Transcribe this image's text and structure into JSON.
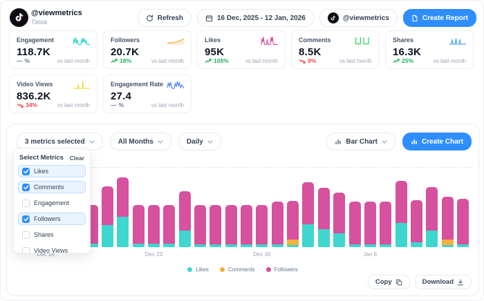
{
  "header": {
    "account": "@viewmetrics",
    "platform": "Tiktok",
    "refresh_label": "Refresh",
    "date_range": "16 Dec, 2025 - 12 Jan, 2026",
    "account_selector": "@viewmetrics",
    "create_report_label": "Create Report"
  },
  "cards": [
    {
      "title": "Engagement",
      "value": "118.7K",
      "direction": "flat",
      "change": "%",
      "compare": "vs last month",
      "spark_color": "#3ad6cf"
    },
    {
      "title": "Followers",
      "value": "20.7K",
      "direction": "up",
      "change": "18%",
      "compare": "vs last month",
      "spark_color": "#f5a93c"
    },
    {
      "title": "Likes",
      "value": "95K",
      "direction": "up",
      "change": "105%",
      "compare": "vs last month",
      "spark_color": "#d9519f"
    },
    {
      "title": "Comments",
      "value": "8.5K",
      "direction": "down",
      "change": "9%",
      "compare": "vs last month",
      "spark_color": "#3fd96d"
    },
    {
      "title": "Shares",
      "value": "16.3K",
      "direction": "up",
      "change": "25%",
      "compare": "vs last month",
      "spark_color": "#4da3ff"
    },
    {
      "title": "Video Views",
      "value": "836.2K",
      "direction": "down",
      "change": "34%",
      "compare": "vs last month",
      "spark_color": "#f0e13c"
    },
    {
      "title": "Engagement Rate",
      "value": "27.4",
      "direction": "flat",
      "change": "%",
      "compare": "vs last month",
      "spark_color": "#4d7ff7"
    }
  ],
  "controls": {
    "metrics_selected": "3 metrics selected",
    "months": "All Months",
    "granularity": "Daily",
    "chart_type": "Bar Chart",
    "create_chart_label": "Create Chart"
  },
  "metrics_dropdown": {
    "title": "Select Metrics",
    "clear_label": "Clear",
    "options": [
      {
        "label": "Likes",
        "checked": true
      },
      {
        "label": "Comments",
        "checked": true
      },
      {
        "label": "Engagement",
        "checked": false
      },
      {
        "label": "Followers",
        "checked": true
      },
      {
        "label": "Shares",
        "checked": false
      },
      {
        "label": "Video Views",
        "checked": false
      }
    ]
  },
  "chart_data": {
    "type": "bar",
    "stacked": true,
    "note": "stacked daily bars; values are relative heights estimated from pixels (no y-axis labels visible)",
    "series": [
      {
        "key": "likes",
        "label": "Likes",
        "color": "#3ed6ce"
      },
      {
        "key": "comments",
        "label": "Comments",
        "color": "#f2b13c"
      },
      {
        "key": "followers",
        "label": "Followers",
        "color": "#d6519e"
      }
    ],
    "x_ticks": [
      "Dec 16",
      "Dec 23",
      "Dec 30",
      "Jan 6"
    ],
    "tick_indices": [
      0,
      7,
      14,
      21
    ],
    "bars": [
      {
        "date": "Dec 16",
        "likes": 4,
        "comments": 0,
        "followers": 58
      },
      {
        "date": "Dec 17",
        "likes": 4,
        "comments": 0,
        "followers": 58
      },
      {
        "date": "Dec 18",
        "likes": 4,
        "comments": 0,
        "followers": 58
      },
      {
        "date": "Dec 19",
        "likes": 5,
        "comments": 0,
        "followers": 56
      },
      {
        "date": "Dec 20",
        "likes": 32,
        "comments": 0,
        "followers": 56
      },
      {
        "date": "Dec 21",
        "likes": 44,
        "comments": 0,
        "followers": 57
      },
      {
        "date": "Dec 22",
        "likes": 5,
        "comments": 0,
        "followers": 56
      },
      {
        "date": "Dec 23",
        "likes": 5,
        "comments": 0,
        "followers": 56
      },
      {
        "date": "Dec 24",
        "likes": 5,
        "comments": 0,
        "followers": 56
      },
      {
        "date": "Dec 25",
        "likes": 24,
        "comments": 0,
        "followers": 57
      },
      {
        "date": "Dec 26",
        "likes": 4,
        "comments": 0,
        "followers": 57
      },
      {
        "date": "Dec 27",
        "likes": 4,
        "comments": 0,
        "followers": 57
      },
      {
        "date": "Dec 28",
        "likes": 4,
        "comments": 0,
        "followers": 57
      },
      {
        "date": "Dec 29",
        "likes": 4,
        "comments": 0,
        "followers": 57
      },
      {
        "date": "Dec 30",
        "likes": 4,
        "comments": 0,
        "followers": 57
      },
      {
        "date": "Dec 31",
        "likes": 4,
        "comments": 0,
        "followers": 62
      },
      {
        "date": "Jan 1",
        "likes": 3,
        "comments": 8,
        "followers": 56
      },
      {
        "date": "Jan 2",
        "likes": 33,
        "comments": 0,
        "followers": 61
      },
      {
        "date": "Jan 3",
        "likes": 26,
        "comments": 0,
        "followers": 60
      },
      {
        "date": "Jan 4",
        "likes": 20,
        "comments": 0,
        "followers": 59
      },
      {
        "date": "Jan 5",
        "likes": 4,
        "comments": 0,
        "followers": 62
      },
      {
        "date": "Jan 6",
        "likes": 4,
        "comments": 0,
        "followers": 62
      },
      {
        "date": "Jan 7",
        "likes": 4,
        "comments": 0,
        "followers": 62
      },
      {
        "date": "Jan 8",
        "likes": 35,
        "comments": 0,
        "followers": 61
      },
      {
        "date": "Jan 9",
        "likes": 7,
        "comments": 0,
        "followers": 61
      },
      {
        "date": "Jan 10",
        "likes": 24,
        "comments": 0,
        "followers": 63
      },
      {
        "date": "Jan 11",
        "likes": 3,
        "comments": 8,
        "followers": 62
      },
      {
        "date": "Jan 12",
        "likes": 4,
        "comments": 0,
        "followers": 66
      }
    ]
  },
  "footer": {
    "copy_label": "Copy",
    "download_label": "Download"
  },
  "colors": {
    "accent_blue": "#2e8efd",
    "likes_teal": "#3ed6ce",
    "comments_orange": "#f2b13c",
    "followers_pink": "#d6519e",
    "positive_green": "#1fae5e",
    "negative_red": "#ef4444"
  }
}
